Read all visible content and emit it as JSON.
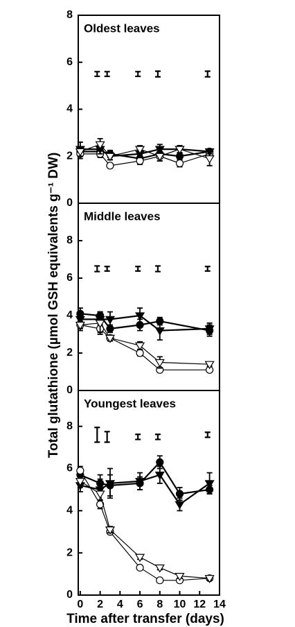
{
  "chart_data": [
    {
      "type": "line",
      "title": "Oldest leaves",
      "xlim": [
        -0.2,
        14
      ],
      "ylim": [
        0,
        8
      ],
      "yticks": [
        0,
        2,
        4,
        6,
        8
      ],
      "series": [
        {
          "marker": "circle",
          "filled": true,
          "color": "#000000",
          "x": [
            0,
            2,
            3,
            6,
            8,
            10,
            13
          ],
          "values": [
            2.2,
            2.2,
            2.1,
            1.9,
            2.1,
            2.0,
            2.2
          ],
          "errors": [
            0.2,
            0.15,
            0.15,
            0.15,
            0.2,
            0.15,
            0.1
          ]
        },
        {
          "marker": "circle",
          "filled": false,
          "color": "#000000",
          "x": [
            0,
            2,
            3,
            6,
            8,
            10,
            13
          ],
          "values": [
            2.1,
            2.1,
            1.6,
            1.8,
            2.0,
            1.7,
            2.1
          ],
          "errors": [
            0.2,
            0.15,
            0.1,
            0.15,
            0.2,
            0.15,
            0.1
          ]
        },
        {
          "marker": "triangle",
          "filled": true,
          "color": "#000000",
          "x": [
            0,
            2,
            3,
            6,
            8,
            10,
            13
          ],
          "values": [
            2.3,
            2.3,
            2.0,
            2.1,
            2.3,
            2.3,
            2.2
          ],
          "errors": [
            0.3,
            0.2,
            0.15,
            0.15,
            0.2,
            0.15,
            0.1
          ]
        },
        {
          "marker": "triangle",
          "filled": false,
          "color": "#000000",
          "x": [
            0,
            2,
            3,
            6,
            8,
            10,
            13
          ],
          "values": [
            2.2,
            2.5,
            2.0,
            2.3,
            2.0,
            2.3,
            1.9
          ],
          "errors": [
            0.2,
            0.25,
            0.15,
            0.15,
            0.2,
            0.15,
            0.3
          ]
        },
        {
          "marker": "bar",
          "color": "#000000",
          "x": [
            1.7,
            2.7,
            5.8,
            7.8,
            12.8
          ],
          "values": [
            5.5,
            5.5,
            5.5,
            5.5,
            5.5
          ],
          "errors": [
            0.1,
            0.1,
            0.1,
            0.12,
            0.12
          ]
        }
      ]
    },
    {
      "type": "line",
      "title": "Middle leaves",
      "xlim": [
        -0.2,
        14
      ],
      "ylim": [
        0,
        10
      ],
      "yticks": [
        0,
        2,
        4,
        6,
        8
      ],
      "y_label": "Total glutathione (µmol GSH equivalents g⁻¹ DW)",
      "series": [
        {
          "marker": "circle",
          "filled": true,
          "color": "#000000",
          "x": [
            0,
            2,
            3,
            6,
            8,
            13
          ],
          "values": [
            4.1,
            4.0,
            3.3,
            3.5,
            3.7,
            3.2
          ],
          "errors": [
            0.3,
            0.2,
            0.2,
            0.3,
            0.2,
            0.3
          ]
        },
        {
          "marker": "triangle",
          "filled": true,
          "color": "#000000",
          "x": [
            0,
            2,
            3,
            6,
            8,
            13
          ],
          "values": [
            3.8,
            3.8,
            3.8,
            4.0,
            3.2,
            3.3
          ],
          "errors": [
            0.4,
            0.3,
            0.4,
            0.4,
            0.5,
            0.3
          ]
        },
        {
          "marker": "circle",
          "filled": false,
          "color": "#000000",
          "x": [
            0,
            2,
            3,
            6,
            8,
            13
          ],
          "values": [
            3.5,
            3.3,
            2.8,
            2.0,
            1.1,
            1.1
          ],
          "errors": [
            0.2,
            0.2,
            0.15,
            0.15,
            0.1,
            0.1
          ]
        },
        {
          "marker": "triangle",
          "filled": false,
          "color": "#000000",
          "x": [
            0,
            2,
            3,
            6,
            8,
            13
          ],
          "values": [
            3.5,
            3.6,
            2.8,
            2.4,
            1.5,
            1.4
          ],
          "errors": [
            0.3,
            0.6,
            0.15,
            0.2,
            0.3,
            0.1
          ]
        },
        {
          "marker": "bar",
          "color": "#000000",
          "x": [
            1.7,
            2.7,
            5.8,
            7.8,
            12.8
          ],
          "values": [
            6.5,
            6.5,
            6.5,
            6.5,
            6.5
          ],
          "errors": [
            0.15,
            0.12,
            0.12,
            0.15,
            0.12
          ]
        }
      ]
    },
    {
      "type": "line",
      "title": "Youngest leaves",
      "xlim": [
        -0.2,
        14
      ],
      "ylim": [
        0,
        9.7
      ],
      "yticks": [
        0,
        2,
        4,
        6,
        8
      ],
      "xticks": [
        0,
        2,
        4,
        6,
        8,
        10,
        12,
        14
      ],
      "x_label": "Time after transfer (days)",
      "series": [
        {
          "marker": "circle",
          "filled": true,
          "color": "#000000",
          "x": [
            0,
            2,
            3,
            6,
            8,
            10,
            13
          ],
          "values": [
            5.7,
            5.3,
            5.2,
            5.3,
            6.3,
            4.8,
            5.0
          ],
          "errors": [
            0.2,
            0.4,
            0.5,
            0.3,
            0.3,
            0.3,
            0.2
          ]
        },
        {
          "marker": "triangle",
          "filled": true,
          "color": "#000000",
          "x": [
            0,
            2,
            3,
            6,
            8,
            10,
            13
          ],
          "values": [
            5.2,
            5.0,
            5.3,
            5.4,
            5.7,
            4.3,
            5.3
          ],
          "errors": [
            0.3,
            0.5,
            0.7,
            0.4,
            0.4,
            0.3,
            0.5
          ]
        },
        {
          "marker": "circle",
          "filled": false,
          "color": "#000000",
          "x": [
            0,
            2,
            3,
            6,
            8,
            10,
            13
          ],
          "values": [
            5.9,
            4.3,
            3.0,
            1.3,
            0.7,
            0.7,
            0.8
          ],
          "errors": [
            0.2,
            0.2,
            0.1,
            0.1,
            0.1,
            0.1,
            0.1
          ]
        },
        {
          "marker": "triangle",
          "filled": false,
          "color": "#000000",
          "x": [
            0,
            2,
            3,
            6,
            8,
            10,
            13
          ],
          "values": [
            5.4,
            4.8,
            3.1,
            1.8,
            1.3,
            0.9,
            0.8
          ],
          "errors": [
            0.3,
            0.3,
            0.15,
            0.1,
            0.1,
            0.1,
            0.1
          ]
        },
        {
          "marker": "bar",
          "color": "#000000",
          "x": [
            1.7,
            2.7,
            5.8,
            7.8,
            12.8
          ],
          "values": [
            7.6,
            7.5,
            7.5,
            7.5,
            7.6
          ],
          "errors": [
            0.35,
            0.25,
            0.12,
            0.12,
            0.12
          ]
        }
      ]
    }
  ]
}
